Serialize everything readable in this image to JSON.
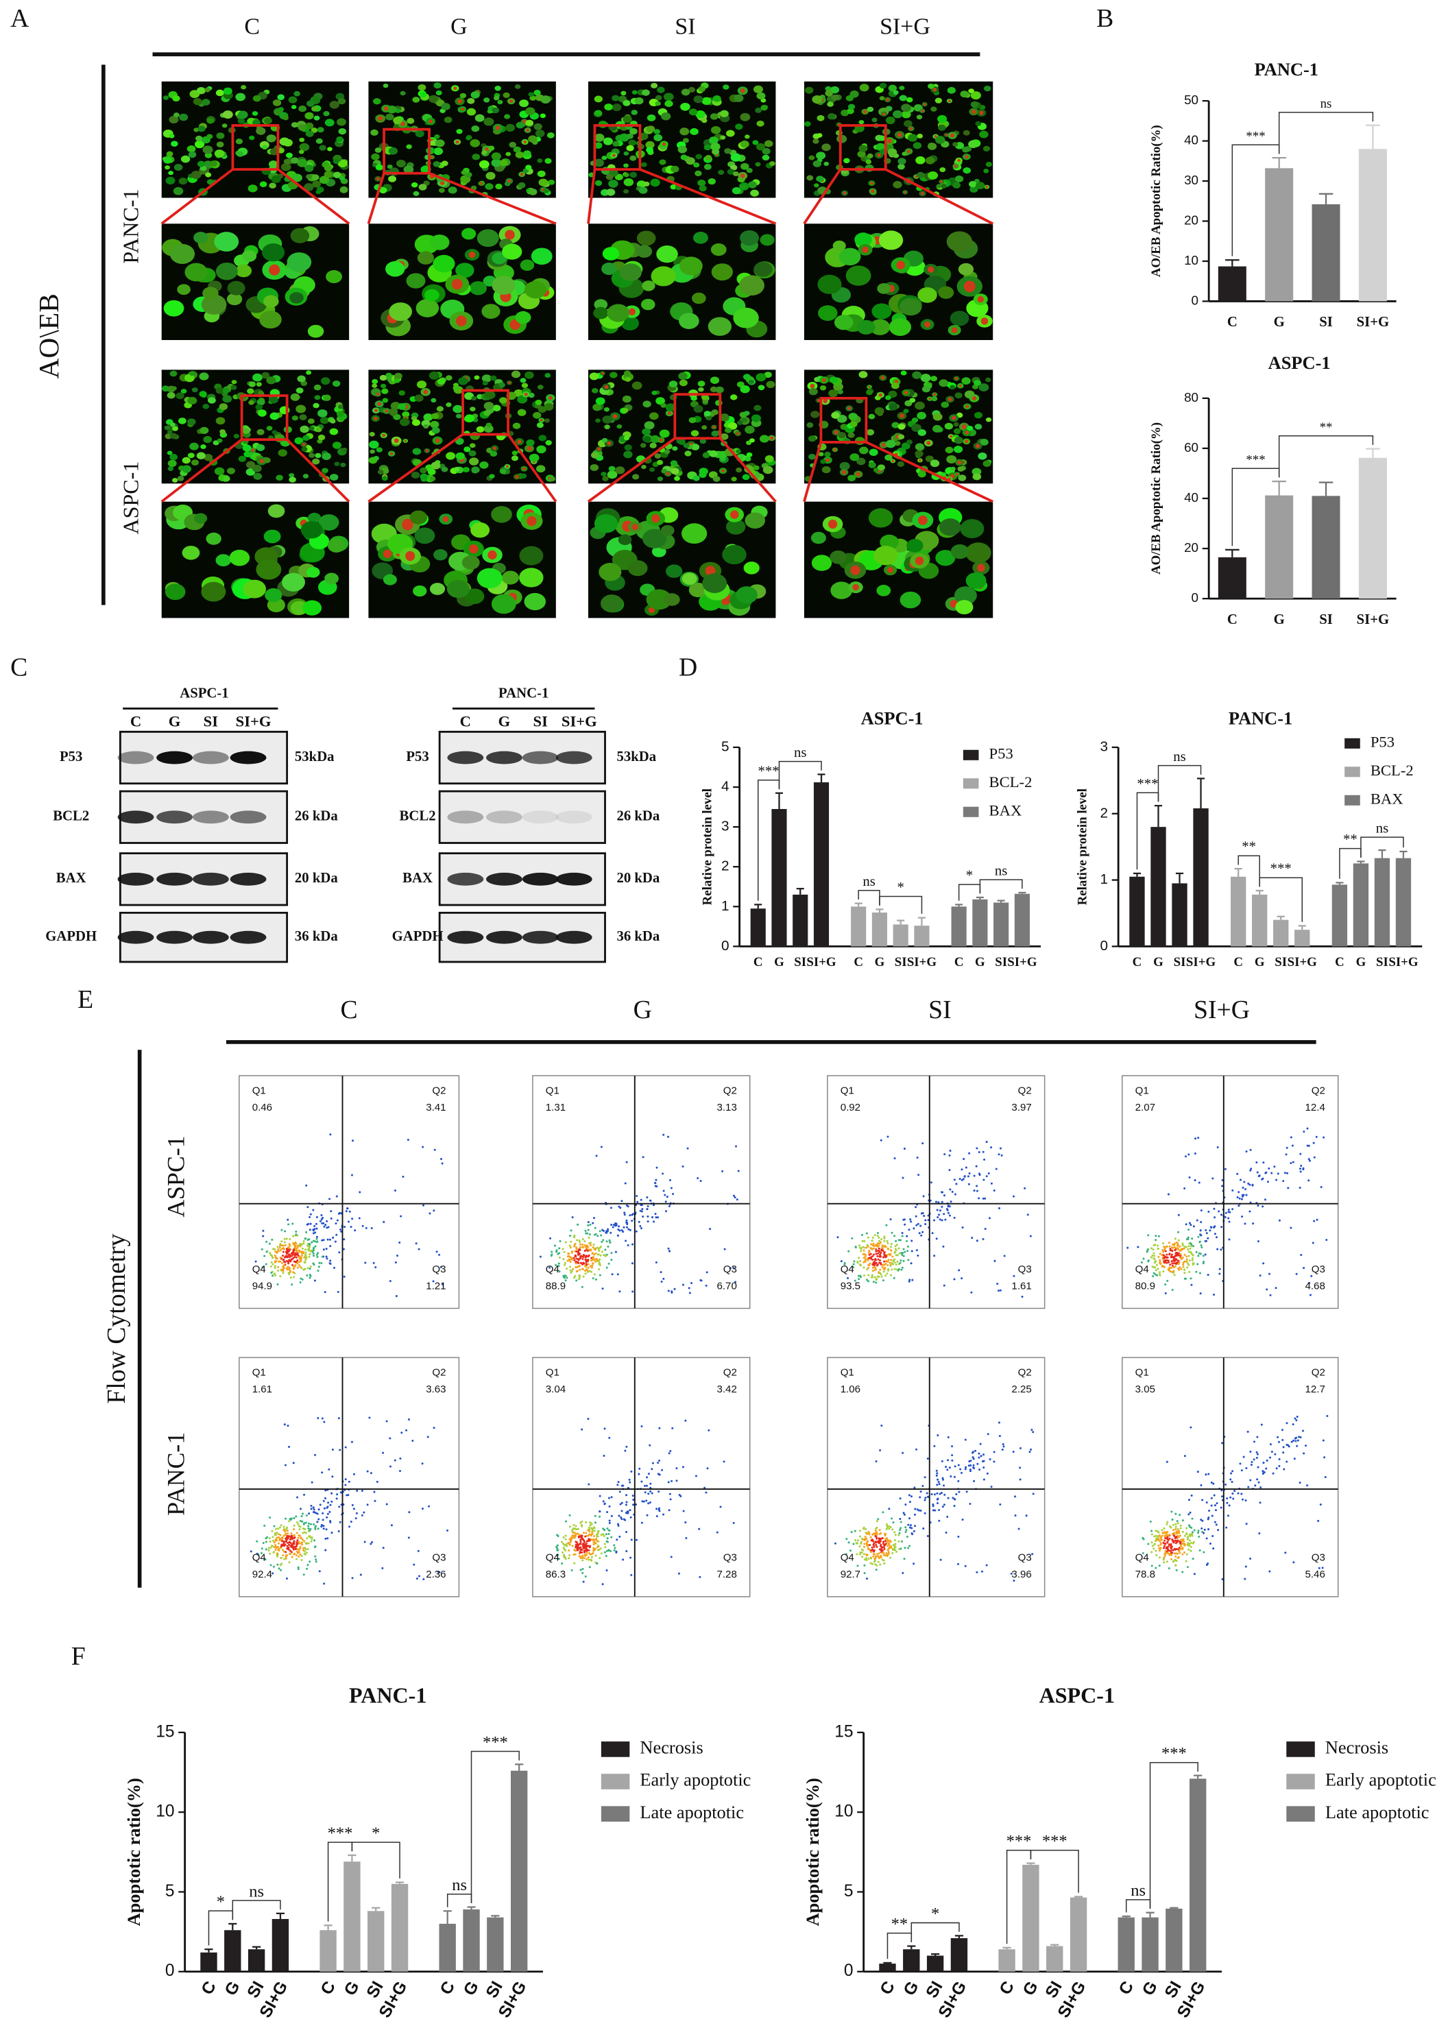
{
  "panels": {
    "A": {
      "letter": "A",
      "columns": [
        "C",
        "G",
        "SI",
        "SI+G"
      ],
      "rows": [
        "PANC-1",
        "ASPC-1"
      ],
      "stain": "AO\\EB"
    },
    "B": {
      "letter": "B"
    },
    "C": {
      "letter": "C",
      "blots": [
        {
          "title": "ASPC-1",
          "lanes": [
            "C",
            "G",
            "SI",
            "SI+G"
          ],
          "proteins": [
            "P53",
            "BCL2",
            "BAX",
            "GAPDH"
          ],
          "sizes": [
            "53kDa",
            "26 kDa",
            "20 kDa",
            "36 kDa"
          ]
        },
        {
          "title": "PANC-1",
          "lanes": [
            "C",
            "G",
            "SI",
            "SI+G"
          ],
          "proteins": [
            "P53",
            "BCL2",
            "BAX",
            "GAPDH"
          ],
          "sizes": [
            "53kDa",
            "26 kDa",
            "20 kDa",
            "36 kDa"
          ]
        }
      ]
    },
    "D": {
      "letter": "D"
    },
    "E": {
      "letter": "E",
      "columns": [
        "C",
        "G",
        "SI",
        "SI+G"
      ],
      "rows": [
        "ASPC-1",
        "PANC-1"
      ],
      "method": "Flow Cytometry",
      "quadrants": [
        "Q1",
        "Q2",
        "Q3",
        "Q4"
      ],
      "plots": [
        [
          [
            "0.46",
            "3.41",
            "1.21",
            "94.9"
          ],
          [
            "1.31",
            "3.13",
            "6.70",
            "88.9"
          ],
          [
            "0.92",
            "3.97",
            "1.61",
            "93.5"
          ],
          [
            "2.07",
            "12.4",
            "4.68",
            "80.9"
          ]
        ],
        [
          [
            "1.61",
            "3.63",
            "2.36",
            "92.4"
          ],
          [
            "3.04",
            "3.42",
            "7.28",
            "86.3"
          ],
          [
            "1.06",
            "2.25",
            "3.96",
            "92.7"
          ],
          [
            "3.05",
            "12.7",
            "5.46",
            "78.8"
          ]
        ]
      ]
    },
    "F": {
      "letter": "F"
    }
  },
  "chart_data": [
    {
      "type": "bar",
      "title": "PANC-1",
      "ylabel": "AO/EB Apoptotic Ratio(%)",
      "categories": [
        "C",
        "G",
        "SI",
        "SI+G"
      ],
      "values": [
        8.7,
        33.2,
        24.2,
        38
      ],
      "errors": [
        1.6,
        2.6,
        2.6,
        5.9
      ],
      "colors": [
        "#231f20",
        "#9e9e9e",
        "#6f6f6f",
        "#d2d2d2"
      ],
      "ylim": [
        0,
        50
      ],
      "yticks": [
        0,
        10,
        20,
        30,
        40,
        50
      ],
      "annotations": [
        {
          "text": "***",
          "from": 0,
          "to": 1
        },
        {
          "text": "ns",
          "from": 1,
          "to": 3
        }
      ]
    },
    {
      "type": "bar",
      "title": "ASPC-1",
      "ylabel": "AO/EB Apoptotic Ratio(%)",
      "categories": [
        "C",
        "G",
        "SI",
        "SI+G"
      ],
      "values": [
        16.5,
        41.2,
        41,
        56.2
      ],
      "errors": [
        3,
        5.6,
        5.4,
        3.6
      ],
      "colors": [
        "#231f20",
        "#9e9e9e",
        "#6f6f6f",
        "#d2d2d2"
      ],
      "ylim": [
        0,
        80
      ],
      "yticks": [
        0,
        20,
        40,
        60,
        80
      ],
      "annotations": [
        {
          "text": "***",
          "from": 0,
          "to": 1
        },
        {
          "text": "**",
          "from": 1,
          "to": 3
        }
      ]
    },
    {
      "type": "bar",
      "title": "ASPC-1",
      "ylabel": "Relative protein level",
      "categories": [
        "C",
        "G",
        "SI",
        "SI+G"
      ],
      "series": [
        {
          "name": "P53",
          "color": "#231f20",
          "values": [
            0.95,
            3.45,
            1.3,
            4.12
          ],
          "errors": [
            0.1,
            0.4,
            0.15,
            0.2
          ]
        },
        {
          "name": "BCL-2",
          "color": "#a6a6a6",
          "values": [
            1.0,
            0.85,
            0.55,
            0.52
          ],
          "errors": [
            0.08,
            0.08,
            0.1,
            0.2
          ]
        },
        {
          "name": "BAX",
          "color": "#7a7a7a",
          "values": [
            1.0,
            1.18,
            1.1,
            1.32
          ],
          "errors": [
            0.05,
            0.05,
            0.05,
            0.03
          ]
        }
      ],
      "ylim": [
        0,
        5
      ],
      "yticks": [
        0,
        1,
        2,
        3,
        4,
        5
      ],
      "legend": "upper right",
      "annotations": [
        {
          "series": 0,
          "text": "***",
          "from": 0,
          "to": 1
        },
        {
          "series": 0,
          "text": "ns",
          "from": 1,
          "to": 3
        },
        {
          "series": 1,
          "text": "ns",
          "from": 0,
          "to": 1
        },
        {
          "series": 1,
          "text": "*",
          "from": 1,
          "to": 3
        },
        {
          "series": 2,
          "text": "*",
          "from": 0,
          "to": 1
        },
        {
          "series": 2,
          "text": "ns",
          "from": 1,
          "to": 3
        }
      ]
    },
    {
      "type": "bar",
      "title": "PANC-1",
      "ylabel": "Relative protein level",
      "categories": [
        "C",
        "G",
        "SI",
        "SI+G"
      ],
      "series": [
        {
          "name": "P53",
          "color": "#231f20",
          "values": [
            1.05,
            1.8,
            0.95,
            2.08
          ],
          "errors": [
            0.05,
            0.32,
            0.15,
            0.45
          ]
        },
        {
          "name": "BCL-2",
          "color": "#a6a6a6",
          "values": [
            1.05,
            0.78,
            0.4,
            0.25
          ],
          "errors": [
            0.12,
            0.06,
            0.05,
            0.06
          ]
        },
        {
          "name": "BAX",
          "color": "#7a7a7a",
          "values": [
            0.93,
            1.25,
            1.33,
            1.33
          ],
          "errors": [
            0.03,
            0.03,
            0.12,
            0.1
          ]
        }
      ],
      "ylim": [
        0,
        3
      ],
      "yticks": [
        0,
        1,
        2,
        3
      ],
      "legend": "upper right",
      "annotations": [
        {
          "series": 0,
          "text": "***",
          "from": 0,
          "to": 1
        },
        {
          "series": 0,
          "text": "ns",
          "from": 1,
          "to": 3
        },
        {
          "series": 1,
          "text": "**",
          "from": 0,
          "to": 1
        },
        {
          "series": 1,
          "text": "***",
          "from": 1,
          "to": 3
        },
        {
          "series": 2,
          "text": "**",
          "from": 0,
          "to": 1
        },
        {
          "series": 2,
          "text": "ns",
          "from": 1,
          "to": 3
        }
      ]
    },
    {
      "type": "bar",
      "title": "PANC-1",
      "ylabel": "Apoptotic ratio(%)",
      "categories": [
        "C",
        "G",
        "SI",
        "SI+G"
      ],
      "series": [
        {
          "name": "Necrosis",
          "color": "#231f20",
          "values": [
            1.2,
            2.6,
            1.4,
            3.3
          ],
          "errors": [
            0.2,
            0.4,
            0.15,
            0.35
          ]
        },
        {
          "name": "Early apoptotic",
          "color": "#a6a6a6",
          "values": [
            2.6,
            6.9,
            3.8,
            5.5
          ],
          "errors": [
            0.3,
            0.4,
            0.2,
            0.1
          ]
        },
        {
          "name": "Late apoptotic",
          "color": "#7a7a7a",
          "values": [
            3.0,
            3.9,
            3.4,
            12.6
          ],
          "errors": [
            0.8,
            0.15,
            0.1,
            0.4
          ]
        }
      ],
      "ylim": [
        0,
        15
      ],
      "yticks": [
        0,
        5,
        10,
        15
      ],
      "legend": "right",
      "annotations": [
        {
          "series": 0,
          "text": "*",
          "from": 0,
          "to": 1
        },
        {
          "series": 0,
          "text": "ns",
          "from": 1,
          "to": 3
        },
        {
          "series": 1,
          "text": "***",
          "from": 0,
          "to": 1
        },
        {
          "series": 1,
          "text": "*",
          "from": 1,
          "to": 3
        },
        {
          "series": 2,
          "text": "ns",
          "from": 0,
          "to": 1
        },
        {
          "series": 2,
          "text": "***",
          "from": 1,
          "to": 3
        }
      ]
    },
    {
      "type": "bar",
      "title": "ASPC-1",
      "ylabel": "Apoptotic ratio(%)",
      "categories": [
        "C",
        "G",
        "SI",
        "SI+G"
      ],
      "series": [
        {
          "name": "Necrosis",
          "color": "#231f20",
          "values": [
            0.5,
            1.4,
            1.0,
            2.1
          ],
          "errors": [
            0.05,
            0.2,
            0.1,
            0.15
          ]
        },
        {
          "name": "Early apoptotic",
          "color": "#a6a6a6",
          "values": [
            1.4,
            6.7,
            1.6,
            4.65
          ],
          "errors": [
            0.1,
            0.1,
            0.08,
            0.05
          ]
        },
        {
          "name": "Late apoptotic",
          "color": "#7a7a7a",
          "values": [
            3.4,
            3.4,
            3.95,
            12.1
          ],
          "errors": [
            0.07,
            0.3,
            0.05,
            0.2
          ]
        }
      ],
      "ylim": [
        0,
        15
      ],
      "yticks": [
        0,
        5,
        10,
        15
      ],
      "legend": "right",
      "annotations": [
        {
          "series": 0,
          "text": "**",
          "from": 0,
          "to": 1
        },
        {
          "series": 0,
          "text": "*",
          "from": 1,
          "to": 3
        },
        {
          "series": 1,
          "text": "***",
          "from": 0,
          "to": 1
        },
        {
          "series": 1,
          "text": "***",
          "from": 1,
          "to": 3
        },
        {
          "series": 2,
          "text": "ns",
          "from": 0,
          "to": 1
        },
        {
          "series": 2,
          "text": "***",
          "from": 1,
          "to": 3
        }
      ]
    }
  ]
}
